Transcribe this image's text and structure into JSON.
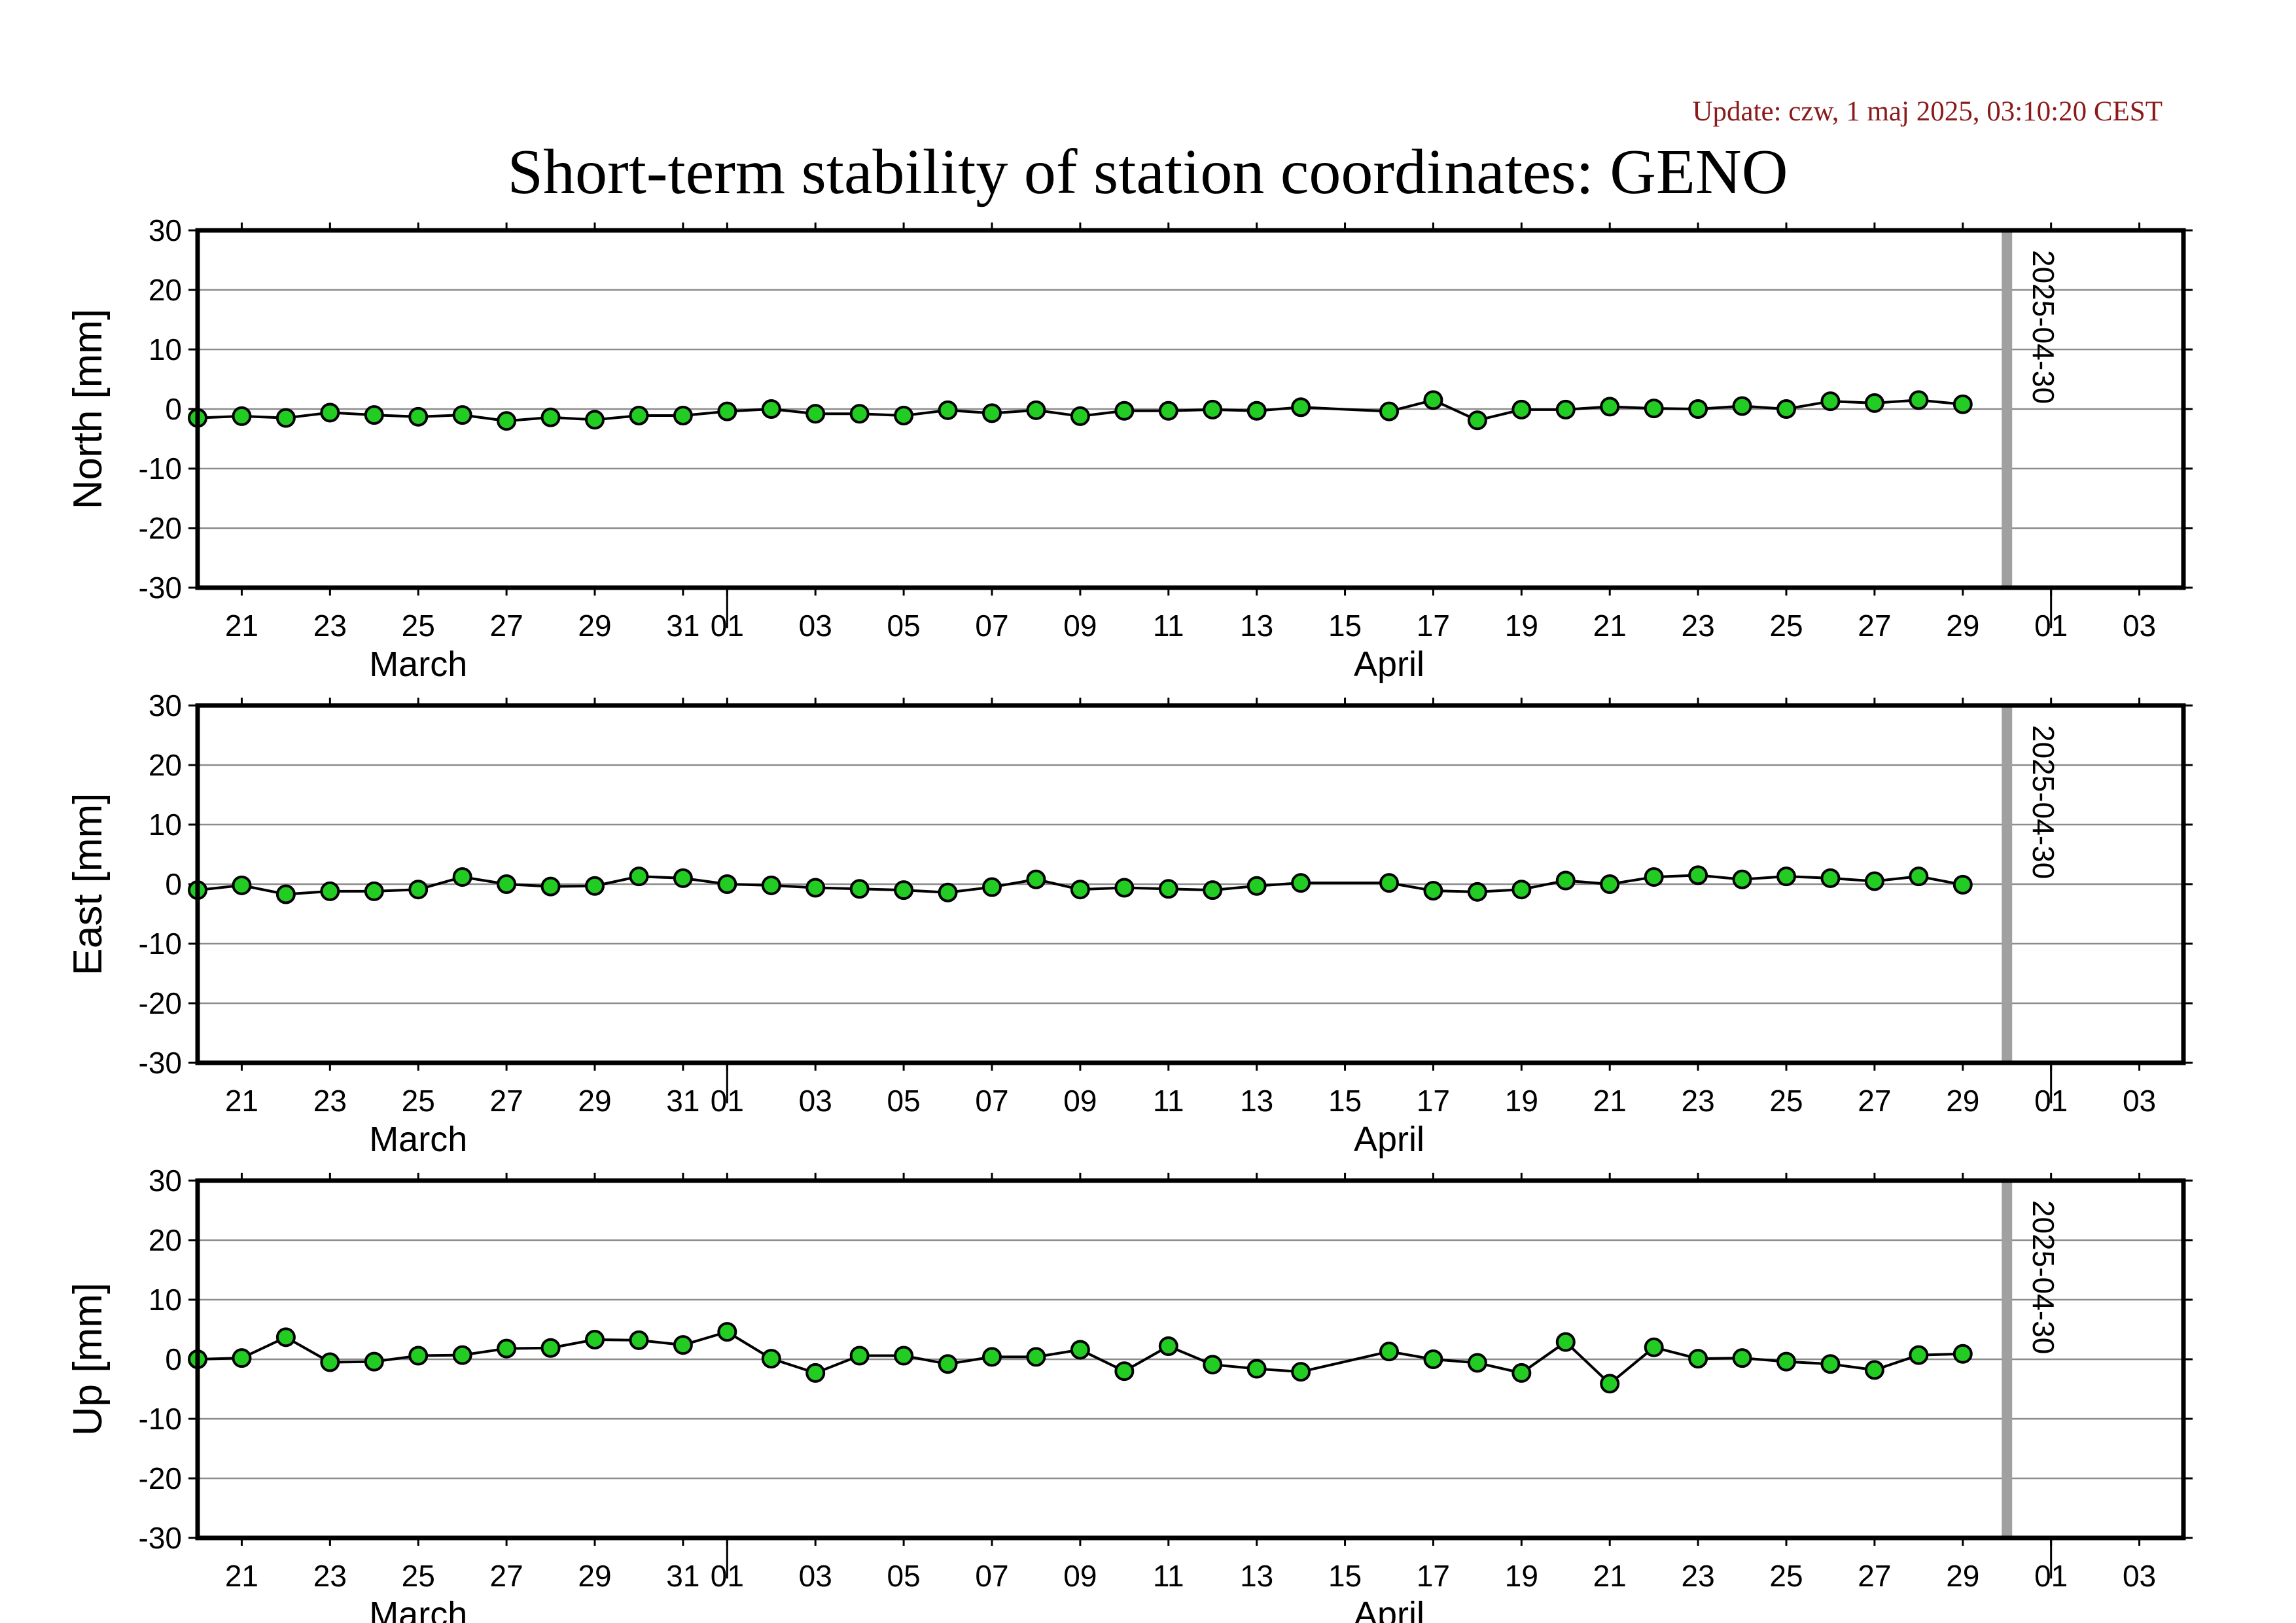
{
  "update": "Update: czw, 1 maj 2025, 03:10:20 CEST",
  "title": "Short-term stability of station coordinates: GENO",
  "chart_data": [
    {
      "type": "line",
      "ylabel": "North [mm]",
      "ylim": [
        -30,
        30
      ],
      "yticks": [
        30,
        20,
        10,
        0,
        -10,
        -20,
        -30
      ],
      "xlim": [
        "2025-03-20",
        "2025-05-04"
      ],
      "grid": true,
      "marker_line_date": "2025-04-30",
      "marker_label": "2025-04-30",
      "colors": {
        "point": "#22cc22",
        "line": "#000000",
        "marker_line": "#a0a0a0"
      },
      "points": [
        {
          "x": "2025-03-20",
          "y": -1.5
        },
        {
          "x": "2025-03-21",
          "y": -1.2
        },
        {
          "x": "2025-03-22",
          "y": -1.5
        },
        {
          "x": "2025-03-23",
          "y": -0.6
        },
        {
          "x": "2025-03-24",
          "y": -1.0
        },
        {
          "x": "2025-03-25",
          "y": -1.3
        },
        {
          "x": "2025-03-26",
          "y": -1.0
        },
        {
          "x": "2025-03-27",
          "y": -2.0
        },
        {
          "x": "2025-03-28",
          "y": -1.4
        },
        {
          "x": "2025-03-29",
          "y": -1.8
        },
        {
          "x": "2025-03-30",
          "y": -1.1
        },
        {
          "x": "2025-03-31",
          "y": -1.1
        },
        {
          "x": "2025-04-01",
          "y": -0.4
        },
        {
          "x": "2025-04-02",
          "y": 0.0
        },
        {
          "x": "2025-04-03",
          "y": -0.8
        },
        {
          "x": "2025-04-04",
          "y": -0.8
        },
        {
          "x": "2025-04-05",
          "y": -1.1
        },
        {
          "x": "2025-04-06",
          "y": -0.2
        },
        {
          "x": "2025-04-07",
          "y": -0.7
        },
        {
          "x": "2025-04-08",
          "y": -0.2
        },
        {
          "x": "2025-04-09",
          "y": -1.2
        },
        {
          "x": "2025-04-10",
          "y": -0.3
        },
        {
          "x": "2025-04-11",
          "y": -0.3
        },
        {
          "x": "2025-04-12",
          "y": -0.1
        },
        {
          "x": "2025-04-13",
          "y": -0.3
        },
        {
          "x": "2025-04-14",
          "y": 0.3
        },
        {
          "x": "2025-04-16",
          "y": -0.4
        },
        {
          "x": "2025-04-17",
          "y": 1.5
        },
        {
          "x": "2025-04-18",
          "y": -1.9
        },
        {
          "x": "2025-04-19",
          "y": -0.1
        },
        {
          "x": "2025-04-20",
          "y": -0.1
        },
        {
          "x": "2025-04-21",
          "y": 0.4
        },
        {
          "x": "2025-04-22",
          "y": 0.1
        },
        {
          "x": "2025-04-23",
          "y": 0.0
        },
        {
          "x": "2025-04-24",
          "y": 0.5
        },
        {
          "x": "2025-04-25",
          "y": 0.0
        },
        {
          "x": "2025-04-26",
          "y": 1.3
        },
        {
          "x": "2025-04-27",
          "y": 1.0
        },
        {
          "x": "2025-04-28",
          "y": 1.5
        },
        {
          "x": "2025-04-29",
          "y": 0.8
        }
      ]
    },
    {
      "type": "line",
      "ylabel": "East [mm]",
      "ylim": [
        -30,
        30
      ],
      "yticks": [
        30,
        20,
        10,
        0,
        -10,
        -20,
        -30
      ],
      "xlim": [
        "2025-03-20",
        "2025-05-04"
      ],
      "grid": true,
      "marker_line_date": "2025-04-30",
      "marker_label": "2025-04-30",
      "colors": {
        "point": "#22cc22",
        "line": "#000000",
        "marker_line": "#a0a0a0"
      },
      "points": [
        {
          "x": "2025-03-20",
          "y": -1.0
        },
        {
          "x": "2025-03-21",
          "y": -0.2
        },
        {
          "x": "2025-03-22",
          "y": -1.7
        },
        {
          "x": "2025-03-23",
          "y": -1.2
        },
        {
          "x": "2025-03-24",
          "y": -1.2
        },
        {
          "x": "2025-03-25",
          "y": -0.9
        },
        {
          "x": "2025-03-26",
          "y": 1.2
        },
        {
          "x": "2025-03-27",
          "y": 0.0
        },
        {
          "x": "2025-03-28",
          "y": -0.4
        },
        {
          "x": "2025-03-29",
          "y": -0.3
        },
        {
          "x": "2025-03-30",
          "y": 1.3
        },
        {
          "x": "2025-03-31",
          "y": 1.0
        },
        {
          "x": "2025-04-01",
          "y": 0.0
        },
        {
          "x": "2025-04-02",
          "y": -0.2
        },
        {
          "x": "2025-04-03",
          "y": -0.6
        },
        {
          "x": "2025-04-04",
          "y": -0.8
        },
        {
          "x": "2025-04-05",
          "y": -1.0
        },
        {
          "x": "2025-04-06",
          "y": -1.4
        },
        {
          "x": "2025-04-07",
          "y": -0.5
        },
        {
          "x": "2025-04-08",
          "y": 0.8
        },
        {
          "x": "2025-04-09",
          "y": -0.9
        },
        {
          "x": "2025-04-10",
          "y": -0.6
        },
        {
          "x": "2025-04-11",
          "y": -0.8
        },
        {
          "x": "2025-04-12",
          "y": -1.0
        },
        {
          "x": "2025-04-13",
          "y": -0.3
        },
        {
          "x": "2025-04-14",
          "y": 0.2
        },
        {
          "x": "2025-04-16",
          "y": 0.2
        },
        {
          "x": "2025-04-17",
          "y": -1.1
        },
        {
          "x": "2025-04-18",
          "y": -1.3
        },
        {
          "x": "2025-04-19",
          "y": -0.9
        },
        {
          "x": "2025-04-20",
          "y": 0.6
        },
        {
          "x": "2025-04-21",
          "y": 0.0
        },
        {
          "x": "2025-04-22",
          "y": 1.2
        },
        {
          "x": "2025-04-23",
          "y": 1.5
        },
        {
          "x": "2025-04-24",
          "y": 0.8
        },
        {
          "x": "2025-04-25",
          "y": 1.3
        },
        {
          "x": "2025-04-26",
          "y": 1.0
        },
        {
          "x": "2025-04-27",
          "y": 0.5
        },
        {
          "x": "2025-04-28",
          "y": 1.3
        },
        {
          "x": "2025-04-29",
          "y": -0.1
        }
      ]
    },
    {
      "type": "line",
      "ylabel": "Up [mm]",
      "ylim": [
        -30,
        30
      ],
      "yticks": [
        30,
        20,
        10,
        0,
        -10,
        -20,
        -30
      ],
      "xlim": [
        "2025-03-20",
        "2025-05-04"
      ],
      "grid": true,
      "marker_line_date": "2025-04-30",
      "marker_label": "2025-04-30",
      "colors": {
        "point": "#22cc22",
        "line": "#000000",
        "marker_line": "#a0a0a0"
      },
      "points": [
        {
          "x": "2025-03-20",
          "y": 0.0
        },
        {
          "x": "2025-03-21",
          "y": 0.2
        },
        {
          "x": "2025-03-22",
          "y": 3.7
        },
        {
          "x": "2025-03-23",
          "y": -0.5
        },
        {
          "x": "2025-03-24",
          "y": -0.4
        },
        {
          "x": "2025-03-25",
          "y": 0.6
        },
        {
          "x": "2025-03-26",
          "y": 0.7
        },
        {
          "x": "2025-03-27",
          "y": 1.8
        },
        {
          "x": "2025-03-28",
          "y": 1.9
        },
        {
          "x": "2025-03-29",
          "y": 3.3
        },
        {
          "x": "2025-03-30",
          "y": 3.2
        },
        {
          "x": "2025-03-31",
          "y": 2.4
        },
        {
          "x": "2025-04-01",
          "y": 4.6
        },
        {
          "x": "2025-04-02",
          "y": 0.1
        },
        {
          "x": "2025-04-03",
          "y": -2.3
        },
        {
          "x": "2025-04-04",
          "y": 0.6
        },
        {
          "x": "2025-04-05",
          "y": 0.6
        },
        {
          "x": "2025-04-06",
          "y": -0.8
        },
        {
          "x": "2025-04-07",
          "y": 0.4
        },
        {
          "x": "2025-04-08",
          "y": 0.4
        },
        {
          "x": "2025-04-09",
          "y": 1.6
        },
        {
          "x": "2025-04-10",
          "y": -2.0
        },
        {
          "x": "2025-04-11",
          "y": 2.2
        },
        {
          "x": "2025-04-12",
          "y": -0.9
        },
        {
          "x": "2025-04-13",
          "y": -1.6
        },
        {
          "x": "2025-04-14",
          "y": -2.1
        },
        {
          "x": "2025-04-16",
          "y": 1.3
        },
        {
          "x": "2025-04-17",
          "y": 0.0
        },
        {
          "x": "2025-04-18",
          "y": -0.6
        },
        {
          "x": "2025-04-19",
          "y": -2.3
        },
        {
          "x": "2025-04-20",
          "y": 2.9
        },
        {
          "x": "2025-04-21",
          "y": -4.1
        },
        {
          "x": "2025-04-22",
          "y": 2.0
        },
        {
          "x": "2025-04-23",
          "y": 0.1
        },
        {
          "x": "2025-04-24",
          "y": 0.2
        },
        {
          "x": "2025-04-25",
          "y": -0.4
        },
        {
          "x": "2025-04-26",
          "y": -0.8
        },
        {
          "x": "2025-04-27",
          "y": -1.8
        },
        {
          "x": "2025-04-28",
          "y": 0.7
        },
        {
          "x": "2025-04-29",
          "y": 0.9
        }
      ]
    }
  ],
  "x_ticks": [
    {
      "date": "2025-03-21",
      "label": "21"
    },
    {
      "date": "2025-03-23",
      "label": "23"
    },
    {
      "date": "2025-03-25",
      "label": "25"
    },
    {
      "date": "2025-03-27",
      "label": "27"
    },
    {
      "date": "2025-03-29",
      "label": "29"
    },
    {
      "date": "2025-03-31",
      "label": "31"
    },
    {
      "date": "2025-04-01",
      "label": "01"
    },
    {
      "date": "2025-04-03",
      "label": "03"
    },
    {
      "date": "2025-04-05",
      "label": "05"
    },
    {
      "date": "2025-04-07",
      "label": "07"
    },
    {
      "date": "2025-04-09",
      "label": "09"
    },
    {
      "date": "2025-04-11",
      "label": "11"
    },
    {
      "date": "2025-04-13",
      "label": "13"
    },
    {
      "date": "2025-04-15",
      "label": "15"
    },
    {
      "date": "2025-04-17",
      "label": "17"
    },
    {
      "date": "2025-04-19",
      "label": "19"
    },
    {
      "date": "2025-04-21",
      "label": "21"
    },
    {
      "date": "2025-04-23",
      "label": "23"
    },
    {
      "date": "2025-04-25",
      "label": "25"
    },
    {
      "date": "2025-04-27",
      "label": "27"
    },
    {
      "date": "2025-04-29",
      "label": "29"
    },
    {
      "date": "2025-05-01",
      "label": "01"
    },
    {
      "date": "2025-05-03",
      "label": "03"
    }
  ],
  "month_labels": [
    {
      "label": "March",
      "center_date": "2025-03-25"
    },
    {
      "label": "April",
      "center_date": "2025-04-16"
    }
  ],
  "month_boundaries": [
    "2025-04-01",
    "2025-05-01"
  ]
}
